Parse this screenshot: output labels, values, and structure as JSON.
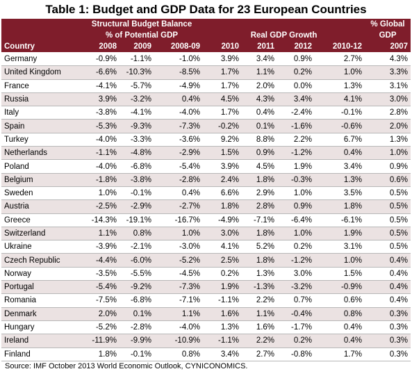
{
  "title": "Table 1:  Budget and GDP Data for 23 European Countries",
  "header": {
    "group_budget_line1": "Structural Budget Balance",
    "group_budget_line2": "% of Potential GDP",
    "group_gdp": "Real GDP Growth",
    "group_global_line1": "% Global",
    "group_global_line2": "GDP",
    "country": "Country",
    "columns": [
      "2008",
      "2009",
      "2008-09",
      "2010",
      "2011",
      "2012",
      "2010-12",
      "2007"
    ]
  },
  "rows": [
    [
      "Germany",
      "-0.9%",
      "-1.1%",
      "-1.0%",
      "3.9%",
      "3.4%",
      "0.9%",
      "2.7%",
      "4.3%"
    ],
    [
      "United Kingdom",
      "-6.6%",
      "-10.3%",
      "-8.5%",
      "1.7%",
      "1.1%",
      "0.2%",
      "1.0%",
      "3.3%"
    ],
    [
      "France",
      "-4.1%",
      "-5.7%",
      "-4.9%",
      "1.7%",
      "2.0%",
      "0.0%",
      "1.3%",
      "3.1%"
    ],
    [
      "Russia",
      "3.9%",
      "-3.2%",
      "0.4%",
      "4.5%",
      "4.3%",
      "3.4%",
      "4.1%",
      "3.0%"
    ],
    [
      "Italy",
      "-3.8%",
      "-4.1%",
      "-4.0%",
      "1.7%",
      "0.4%",
      "-2.4%",
      "-0.1%",
      "2.8%"
    ],
    [
      "Spain",
      "-5.3%",
      "-9.3%",
      "-7.3%",
      "-0.2%",
      "0.1%",
      "-1.6%",
      "-0.6%",
      "2.0%"
    ],
    [
      "Turkey",
      "-4.0%",
      "-3.3%",
      "-3.6%",
      "9.2%",
      "8.8%",
      "2.2%",
      "6.7%",
      "1.3%"
    ],
    [
      "Netherlands",
      "-1.1%",
      "-4.8%",
      "-2.9%",
      "1.5%",
      "0.9%",
      "-1.2%",
      "0.4%",
      "1.0%"
    ],
    [
      "Poland",
      "-4.0%",
      "-6.8%",
      "-5.4%",
      "3.9%",
      "4.5%",
      "1.9%",
      "3.4%",
      "0.9%"
    ],
    [
      "Belgium",
      "-1.8%",
      "-3.8%",
      "-2.8%",
      "2.4%",
      "1.8%",
      "-0.3%",
      "1.3%",
      "0.6%"
    ],
    [
      "Sweden",
      "1.0%",
      "-0.1%",
      "0.4%",
      "6.6%",
      "2.9%",
      "1.0%",
      "3.5%",
      "0.5%"
    ],
    [
      "Austria",
      "-2.5%",
      "-2.9%",
      "-2.7%",
      "1.8%",
      "2.8%",
      "0.9%",
      "1.8%",
      "0.5%"
    ],
    [
      "Greece",
      "-14.3%",
      "-19.1%",
      "-16.7%",
      "-4.9%",
      "-7.1%",
      "-6.4%",
      "-6.1%",
      "0.5%"
    ],
    [
      "Switzerland",
      "1.1%",
      "0.8%",
      "1.0%",
      "3.0%",
      "1.8%",
      "1.0%",
      "1.9%",
      "0.5%"
    ],
    [
      "Ukraine",
      "-3.9%",
      "-2.1%",
      "-3.0%",
      "4.1%",
      "5.2%",
      "0.2%",
      "3.1%",
      "0.5%"
    ],
    [
      "Czech Republic",
      "-4.4%",
      "-6.0%",
      "-5.2%",
      "2.5%",
      "1.8%",
      "-1.2%",
      "1.0%",
      "0.4%"
    ],
    [
      "Norway",
      "-3.5%",
      "-5.5%",
      "-4.5%",
      "0.2%",
      "1.3%",
      "3.0%",
      "1.5%",
      "0.4%"
    ],
    [
      "Portugal",
      "-5.4%",
      "-9.2%",
      "-7.3%",
      "1.9%",
      "-1.3%",
      "-3.2%",
      "-0.9%",
      "0.4%"
    ],
    [
      "Romania",
      "-7.5%",
      "-6.8%",
      "-7.1%",
      "-1.1%",
      "2.2%",
      "0.7%",
      "0.6%",
      "0.4%"
    ],
    [
      "Denmark",
      "2.0%",
      "0.1%",
      "1.1%",
      "1.6%",
      "1.1%",
      "-0.4%",
      "0.8%",
      "0.3%"
    ],
    [
      "Hungary",
      "-5.2%",
      "-2.8%",
      "-4.0%",
      "1.3%",
      "1.6%",
      "-1.7%",
      "0.4%",
      "0.3%"
    ],
    [
      "Ireland",
      "-11.9%",
      "-9.9%",
      "-10.9%",
      "-1.1%",
      "2.2%",
      "0.2%",
      "0.4%",
      "0.3%"
    ],
    [
      "Finland",
      "1.8%",
      "-0.1%",
      "0.8%",
      "3.4%",
      "2.7%",
      "-0.8%",
      "1.7%",
      "0.3%"
    ]
  ],
  "source": "Source:  IMF October 2013 World Economic Outlook, CYNICONOMICS.",
  "colors": {
    "header_bg": "#7f1d2b",
    "header_text": "#ffffff",
    "band_row_bg": "#ebe2e2"
  }
}
